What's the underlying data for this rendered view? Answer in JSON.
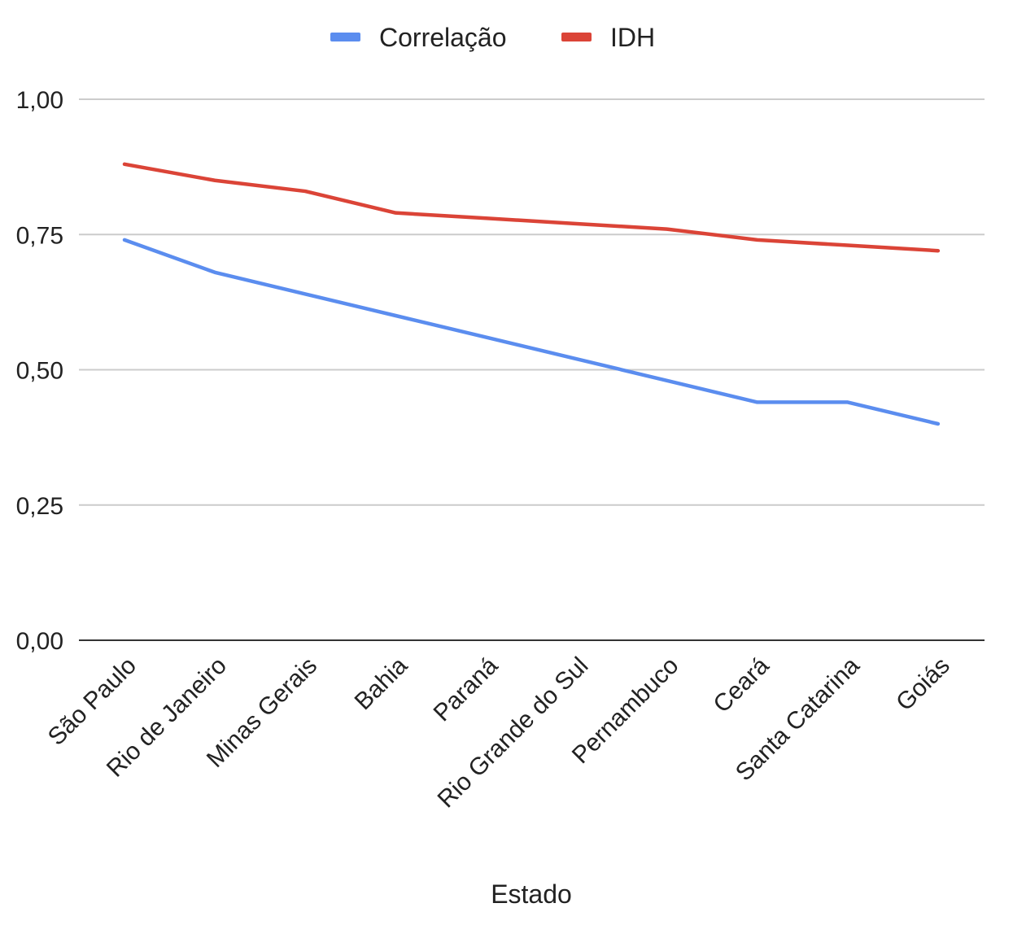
{
  "chart_data": {
    "type": "line",
    "title": "",
    "xlabel": "Estado",
    "ylabel": "",
    "categories": [
      "São Paulo",
      "Rio de Janeiro",
      "Minas Gerais",
      "Bahia",
      "Paraná",
      "Rio Grande do Sul",
      "Pernambuco",
      "Ceará",
      "Santa Catarina",
      "Goiás"
    ],
    "series": [
      {
        "name": "Correlação",
        "color": "#5b8def",
        "values": [
          0.74,
          0.68,
          0.64,
          0.6,
          0.56,
          0.52,
          0.48,
          0.44,
          0.44,
          0.4
        ]
      },
      {
        "name": "IDH",
        "color": "#db4437",
        "values": [
          0.88,
          0.85,
          0.83,
          0.79,
          0.78,
          0.77,
          0.76,
          0.74,
          0.73,
          0.72
        ]
      }
    ],
    "ylim": [
      0,
      1
    ],
    "yticks": [
      {
        "value": 0,
        "label": "0,00"
      },
      {
        "value": 0.25,
        "label": "0,25"
      },
      {
        "value": 0.5,
        "label": "0,50"
      },
      {
        "value": 0.75,
        "label": "0,75"
      },
      {
        "value": 1,
        "label": "1,00"
      }
    ],
    "grid": true,
    "legend_position": "top-center"
  }
}
